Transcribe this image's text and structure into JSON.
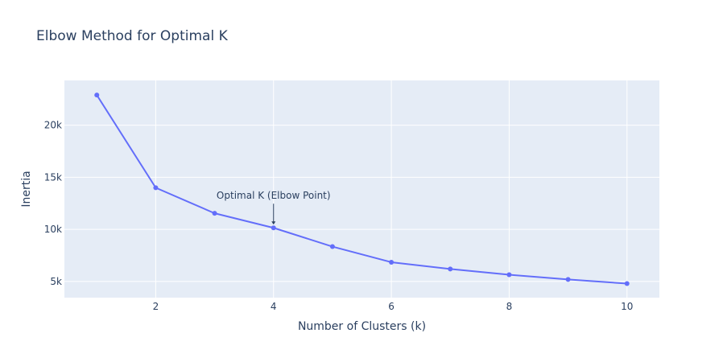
{
  "chart_data": {
    "type": "line",
    "title": "Elbow Method for Optimal K",
    "xlabel": "Number of Clusters (k)",
    "ylabel": "Inertia",
    "x": [
      1,
      2,
      3,
      4,
      5,
      6,
      7,
      8,
      9,
      10
    ],
    "series": [
      {
        "values": [
          22900,
          14000,
          11550,
          10150,
          8350,
          6850,
          6200,
          5650,
          5200,
          4800
        ],
        "color": "#636efa",
        "mode": "lines+markers"
      }
    ],
    "xlim": [
      0.45,
      10.55
    ],
    "ylim": [
      3450,
      24300
    ],
    "xticks": [
      2,
      4,
      6,
      8,
      10
    ],
    "xtick_labels": [
      "2",
      "4",
      "6",
      "8",
      "10"
    ],
    "yticks": [
      5000,
      10000,
      15000,
      20000
    ],
    "ytick_labels": [
      "5k",
      "10k",
      "15k",
      "20k"
    ],
    "grid": true,
    "background": "#e5ecf6",
    "annotations": [
      {
        "text": "Optimal K (Elbow Point)",
        "x": 4,
        "y": 10150,
        "arrow": true
      }
    ]
  }
}
